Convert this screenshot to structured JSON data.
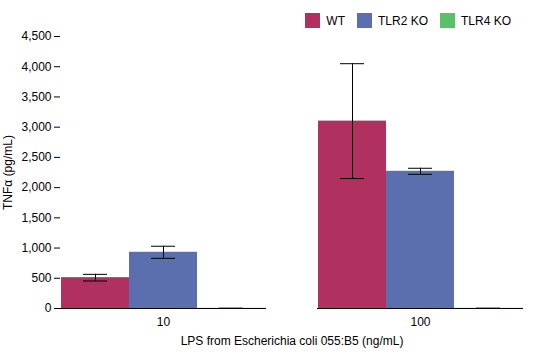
{
  "chart_data": {
    "type": "bar",
    "categories": [
      "10",
      "100"
    ],
    "series": [
      {
        "name": "WT",
        "color": "#b03060",
        "values": [
          510,
          3100
        ],
        "errors": [
          55,
          950
        ]
      },
      {
        "name": "TLR2 KO",
        "color": "#5b6fae",
        "values": [
          930,
          2270
        ],
        "errors": [
          100,
          50
        ]
      },
      {
        "name": "TLR4 KO",
        "color": "#5cbf6a",
        "values": [
          3,
          3
        ],
        "errors": [
          0,
          0
        ]
      }
    ],
    "xlabel": "LPS from Escherichia coli 055:B5 (ng/mL)",
    "ylabel": "TNFα (pg/mL)",
    "ylim": [
      0,
      4500
    ],
    "yticks": [
      0,
      500,
      1000,
      1500,
      2000,
      2500,
      3000,
      3500,
      4000,
      4500
    ],
    "grid": false,
    "legend": "upper right"
  }
}
